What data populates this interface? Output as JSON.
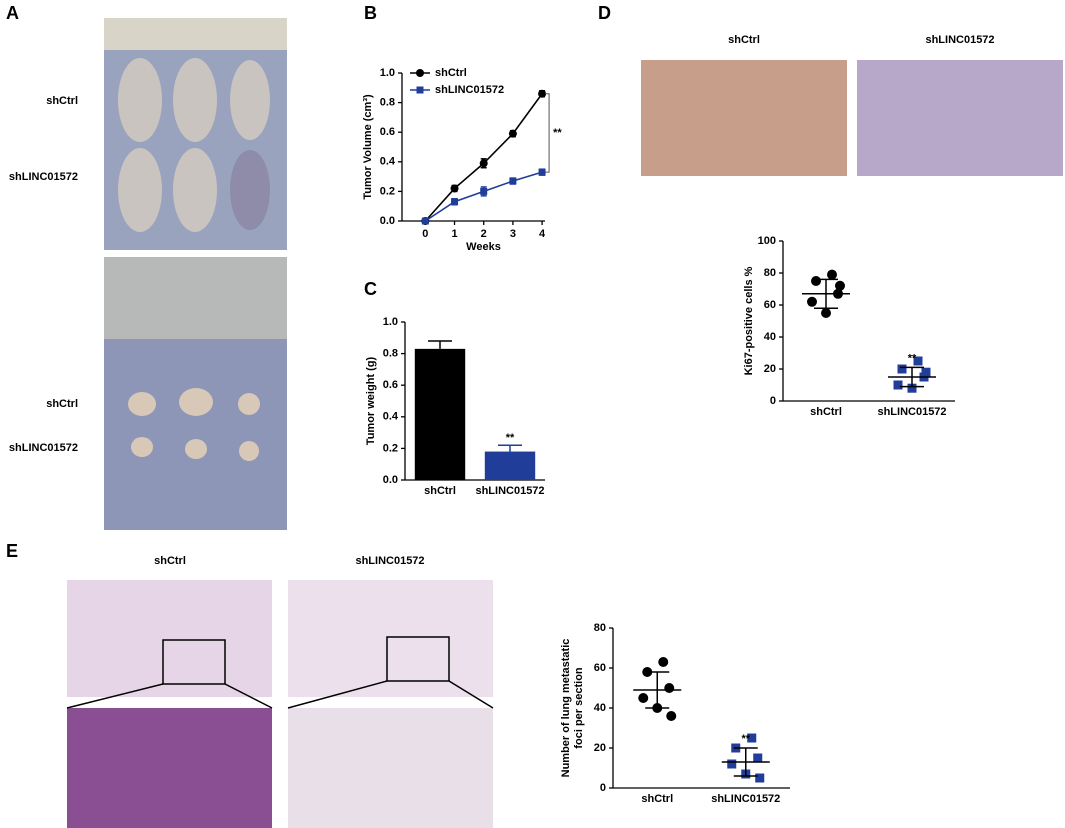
{
  "figure": {
    "panel_labels": [
      "A",
      "B",
      "C",
      "D",
      "E"
    ],
    "panel_a_labels": [
      "shCtrl",
      "shLINC01572",
      "shCtrl",
      "shLINC01572"
    ],
    "panel_d_labels": [
      "shCtrl",
      "shLINC01572"
    ],
    "panel_e_labels": [
      "shCtrl",
      "shLINC01572"
    ]
  },
  "chart_data": [
    {
      "type": "line",
      "x": [
        0,
        1,
        2,
        3,
        4
      ],
      "xlim": [
        -0.8,
        4.1
      ],
      "xticks": [
        0,
        1,
        2,
        3,
        4
      ],
      "ylim": [
        0,
        1
      ],
      "yticks": [
        {
          "value": 0,
          "label": "0.0"
        },
        0.2,
        0.4,
        0.6,
        0.8,
        {
          "value": 1,
          "label": "1.0"
        }
      ],
      "x_label": "Weeks",
      "y_label": "Tumor Volume (cm³)",
      "annotation": "**",
      "series": [
        {
          "name": "shCtrl",
          "color": "#000000",
          "marker": "circle",
          "values": [
            0,
            0.22,
            0.39,
            0.59,
            0.86
          ],
          "errors": [
            0,
            0.02,
            0.03,
            0.02,
            0.02
          ]
        },
        {
          "name": "shLINC01572",
          "color": "#1f3d99",
          "marker": "square",
          "values": [
            0,
            0.13,
            0.2,
            0.27,
            0.33
          ],
          "errors": [
            0,
            0.02,
            0.03,
            0.02,
            0.02
          ]
        }
      ]
    },
    {
      "type": "bar",
      "categories": [
        "shCtrl",
        "shLINC01572"
      ],
      "values": [
        0.83,
        0.18
      ],
      "errors": [
        0.05,
        0.04
      ],
      "colors": [
        "#000000",
        "#1f3d99"
      ],
      "ylim": [
        0,
        1
      ],
      "yticks": [
        {
          "value": 0,
          "label": "0.0"
        },
        0.2,
        0.4,
        0.6,
        0.8,
        {
          "value": 1,
          "label": "1.0"
        }
      ],
      "y_label": "Tumor weight (g)",
      "annotation": "**"
    },
    {
      "type": "dotplot",
      "categories": [
        "shCtrl",
        "shLINC01572"
      ],
      "ylim": [
        0,
        100
      ],
      "yticks": [
        0,
        20,
        40,
        60,
        80,
        100
      ],
      "y_label": [
        "Ki67-positive cells %"
      ],
      "annotation": "**",
      "groups": [
        {
          "color": "#000000",
          "marker": "circle",
          "values": [
            79,
            75,
            67,
            62,
            55,
            72
          ],
          "mean": 67,
          "sd": 9
        },
        {
          "color": "#1f3d99",
          "marker": "square",
          "values": [
            25,
            20,
            15,
            10,
            8,
            18
          ],
          "mean": 15,
          "sd": 6
        }
      ]
    },
    {
      "type": "dotplot",
      "categories": [
        "shCtrl",
        "shLINC01572"
      ],
      "ylim": [
        0,
        80
      ],
      "yticks": [
        0,
        20,
        40,
        60,
        80
      ],
      "y_label": [
        "Number of lung  metastatic",
        "foci per section"
      ],
      "annotation": "**",
      "groups": [
        {
          "color": "#000000",
          "marker": "circle",
          "values": [
            63,
            58,
            50,
            45,
            40,
            36
          ],
          "mean": 49,
          "sd": 9
        },
        {
          "color": "#1f3d99",
          "marker": "square",
          "values": [
            25,
            20,
            15,
            12,
            7,
            5
          ],
          "mean": 13,
          "sd": 7
        }
      ]
    }
  ]
}
